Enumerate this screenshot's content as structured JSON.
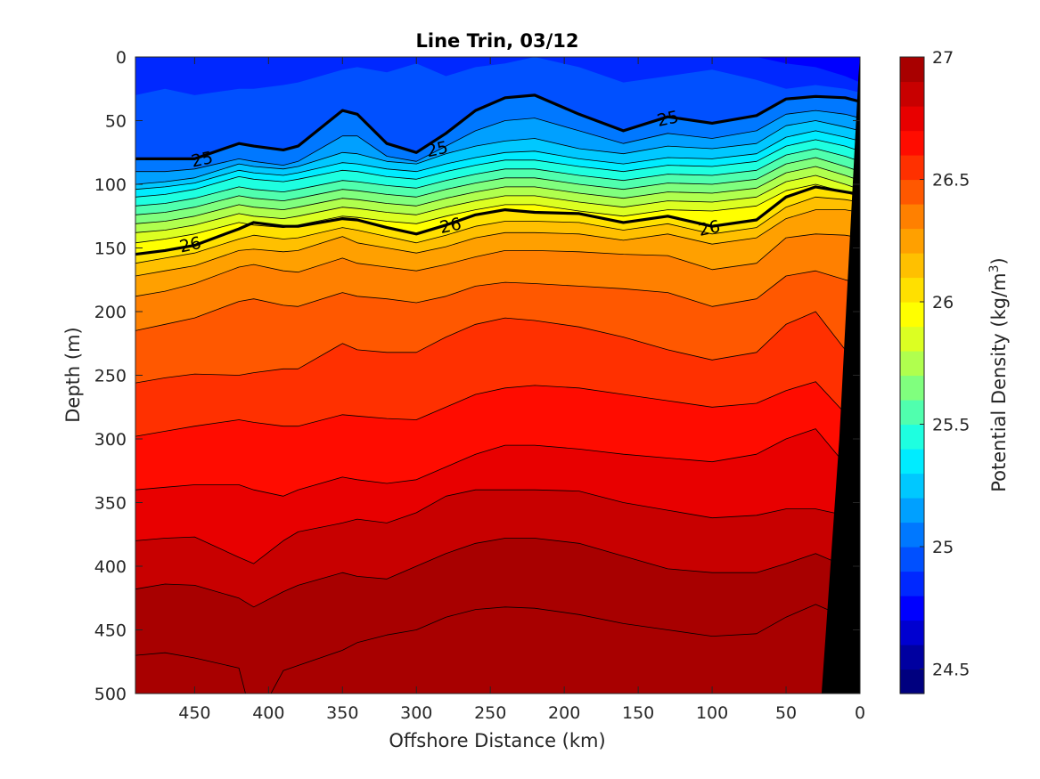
{
  "chart_data": {
    "type": "heatmap",
    "subtype": "filled-contour",
    "title": "Line Trin, 03/12",
    "xlabel": "Offshore Distance (km)",
    "ylabel": "Depth (m)",
    "colorbar_label": "Potential Density (kg/m",
    "colorbar_label_sup": "3",
    "colorbar_label_end": ")",
    "x_reversed": true,
    "y_reversed": true,
    "xlim": [
      490,
      0
    ],
    "ylim": [
      0,
      500
    ],
    "clim": [
      24.4,
      27.0
    ],
    "contour_step": 0.1,
    "labeled_levels": [
      25,
      26
    ],
    "x_ticks": [
      450,
      400,
      350,
      300,
      250,
      200,
      150,
      100,
      50,
      0
    ],
    "x_tick_labels": [
      "450",
      "400",
      "350",
      "300",
      "250",
      "200",
      "150",
      "100",
      "50",
      "0"
    ],
    "y_ticks": [
      0,
      50,
      100,
      150,
      200,
      250,
      300,
      350,
      400,
      450,
      500
    ],
    "y_tick_labels": [
      "0",
      "50",
      "100",
      "150",
      "200",
      "250",
      "300",
      "350",
      "400",
      "450",
      "500"
    ],
    "colorbar_ticks": [
      24.5,
      25,
      25.5,
      26,
      26.5,
      27
    ],
    "colorbar_tick_labels": [
      "24.5",
      "25",
      "25.5",
      "26",
      "26.5",
      "27"
    ],
    "contour_labels": [
      {
        "text": "25",
        "x": 445,
        "y": 80
      },
      {
        "text": "25",
        "x": 286,
        "y": 72
      },
      {
        "text": "25",
        "x": 130,
        "y": 48
      },
      {
        "text": "26",
        "x": 453,
        "y": 147
      },
      {
        "text": "26",
        "x": 277,
        "y": 132
      },
      {
        "text": "26",
        "x": 102,
        "y": 134
      }
    ],
    "isopycnal_depths": {
      "x": [
        490,
        470,
        450,
        420,
        410,
        390,
        380,
        350,
        340,
        320,
        300,
        280,
        260,
        240,
        220,
        190,
        160,
        130,
        100,
        70,
        50,
        30,
        10,
        0
      ],
      "levels": [
        {
          "sigma": 24.7,
          "depth": [
            -28,
            -32,
            -25,
            -30,
            -30,
            -28,
            -30,
            -40,
            -35,
            -30,
            -45,
            -22,
            -38,
            -40,
            -48,
            -40,
            -28,
            -30,
            -32,
            -20,
            -5,
            0,
            0,
            0
          ]
        },
        {
          "sigma": 24.8,
          "depth": [
            -8,
            -10,
            -5,
            -10,
            -10,
            -8,
            -8,
            -20,
            -15,
            -10,
            -25,
            -5,
            -18,
            -20,
            -28,
            -20,
            -5,
            -8,
            -8,
            0,
            5,
            8,
            15,
            20
          ]
        },
        {
          "sigma": 24.9,
          "depth": [
            30,
            25,
            30,
            25,
            25,
            22,
            20,
            10,
            8,
            12,
            5,
            15,
            8,
            5,
            0,
            8,
            20,
            15,
            10,
            18,
            25,
            22,
            25,
            28
          ]
        },
        {
          "sigma": 25.0,
          "depth": [
            80,
            80,
            80,
            68,
            70,
            73,
            70,
            42,
            45,
            68,
            75,
            60,
            42,
            32,
            30,
            45,
            58,
            47,
            52,
            46,
            33,
            31,
            32,
            35
          ]
        },
        {
          "sigma": 25.1,
          "depth": [
            90,
            90,
            88,
            80,
            82,
            85,
            82,
            62,
            62,
            78,
            82,
            70,
            58,
            50,
            48,
            58,
            68,
            60,
            64,
            58,
            45,
            42,
            45,
            48
          ]
        },
        {
          "sigma": 25.2,
          "depth": [
            100,
            98,
            95,
            84,
            86,
            88,
            86,
            75,
            76,
            82,
            84,
            76,
            70,
            66,
            64,
            72,
            76,
            70,
            72,
            68,
            54,
            50,
            55,
            58
          ]
        },
        {
          "sigma": 25.3,
          "depth": [
            104,
            102,
            99,
            89,
            91,
            93,
            91,
            83,
            84,
            88,
            90,
            84,
            79,
            75,
            74,
            80,
            84,
            79,
            80,
            76,
            63,
            58,
            63,
            66
          ]
        },
        {
          "sigma": 25.4,
          "depth": [
            110,
            108,
            104,
            94,
            96,
            98,
            96,
            89,
            90,
            94,
            96,
            90,
            85,
            81,
            81,
            86,
            90,
            85,
            86,
            82,
            70,
            65,
            70,
            74
          ]
        },
        {
          "sigma": 25.5,
          "depth": [
            117,
            115,
            111,
            102,
            104,
            106,
            104,
            97,
            98,
            101,
            103,
            97,
            92,
            88,
            88,
            93,
            97,
            92,
            93,
            89,
            77,
            72,
            78,
            82
          ]
        },
        {
          "sigma": 25.6,
          "depth": [
            124,
            122,
            118,
            109,
            111,
            113,
            111,
            104,
            105,
            108,
            110,
            104,
            99,
            95,
            95,
            100,
            104,
            99,
            100,
            96,
            84,
            79,
            86,
            90
          ]
        },
        {
          "sigma": 25.7,
          "depth": [
            131,
            129,
            125,
            116,
            118,
            120,
            118,
            111,
            112,
            115,
            117,
            111,
            106,
            102,
            102,
            107,
            111,
            106,
            107,
            103,
            91,
            86,
            93,
            97
          ]
        },
        {
          "sigma": 25.8,
          "depth": [
            138,
            136,
            132,
            123,
            125,
            127,
            125,
            118,
            119,
            122,
            124,
            118,
            113,
            109,
            109,
            114,
            118,
            113,
            114,
            110,
            98,
            93,
            100,
            104
          ]
        },
        {
          "sigma": 25.9,
          "depth": [
            146,
            143,
            139,
            130,
            132,
            134,
            132,
            125,
            126,
            129,
            131,
            125,
            120,
            116,
            116,
            121,
            125,
            120,
            121,
            117,
            105,
            100,
            106,
            110
          ]
        },
        {
          "sigma": 26.0,
          "depth": [
            155,
            152,
            148,
            135,
            130,
            133,
            133,
            127,
            128,
            134,
            139,
            132,
            124,
            120,
            122,
            123,
            130,
            125,
            133,
            128,
            110,
            102,
            106,
            108
          ]
        },
        {
          "sigma": 26.1,
          "depth": [
            162,
            158,
            154,
            143,
            140,
            143,
            142,
            134,
            136,
            141,
            146,
            140,
            133,
            129,
            129,
            130,
            136,
            131,
            139,
            134,
            118,
            110,
            112,
            114
          ]
        },
        {
          "sigma": 26.2,
          "depth": [
            172,
            168,
            164,
            152,
            151,
            153,
            152,
            141,
            146,
            150,
            154,
            149,
            142,
            138,
            138,
            139,
            144,
            139,
            147,
            142,
            127,
            120,
            120,
            122
          ]
        },
        {
          "sigma": 26.3,
          "depth": [
            188,
            184,
            178,
            165,
            163,
            168,
            169,
            158,
            162,
            165,
            168,
            163,
            157,
            152,
            152,
            153,
            155,
            156,
            167,
            162,
            142,
            139,
            140,
            142
          ]
        },
        {
          "sigma": 26.4,
          "depth": [
            215,
            210,
            205,
            192,
            190,
            195,
            196,
            185,
            188,
            190,
            193,
            188,
            180,
            177,
            178,
            180,
            182,
            185,
            196,
            190,
            172,
            168,
            175,
            178
          ]
        },
        {
          "sigma": 26.5,
          "depth": [
            256,
            252,
            249,
            250,
            248,
            245,
            245,
            225,
            230,
            232,
            232,
            220,
            210,
            205,
            207,
            212,
            220,
            230,
            238,
            232,
            210,
            200,
            230,
            240
          ]
        },
        {
          "sigma": 26.6,
          "depth": [
            298,
            294,
            290,
            285,
            287,
            290,
            290,
            281,
            282,
            284,
            285,
            275,
            265,
            260,
            258,
            260,
            265,
            270,
            275,
            272,
            262,
            255,
            280,
            290
          ]
        },
        {
          "sigma": 26.7,
          "depth": [
            340,
            338,
            336,
            336,
            340,
            345,
            340,
            330,
            332,
            335,
            332,
            322,
            312,
            305,
            305,
            308,
            312,
            315,
            318,
            312,
            300,
            292,
            320,
            330
          ]
        },
        {
          "sigma": 26.8,
          "depth": [
            380,
            378,
            377,
            393,
            398,
            380,
            373,
            366,
            363,
            366,
            358,
            345,
            340,
            340,
            340,
            341,
            350,
            356,
            362,
            360,
            355,
            355,
            360,
            365
          ]
        },
        {
          "sigma": 26.9,
          "depth": [
            418,
            414,
            415,
            425,
            432,
            420,
            415,
            405,
            408,
            410,
            400,
            390,
            382,
            378,
            378,
            382,
            392,
            402,
            405,
            405,
            398,
            390,
            400,
            405
          ]
        },
        {
          "sigma": 27.0,
          "depth": [
            470,
            468,
            472,
            480,
            525,
            482,
            478,
            466,
            460,
            454,
            450,
            440,
            434,
            432,
            433,
            438,
            445,
            450,
            455,
            453,
            440,
            430,
            440,
            445
          ]
        }
      ]
    },
    "bathymetry": {
      "x": [
        26,
        14,
        1,
        0
      ],
      "depth": [
        500,
        300,
        15,
        0
      ]
    },
    "colormap": [
      "#00007f",
      "#0000a0",
      "#0000d0",
      "#0000ff",
      "#0028ff",
      "#0050ff",
      "#0078ff",
      "#00a0ff",
      "#00c8ff",
      "#00ecff",
      "#1effe0",
      "#50ffae",
      "#80ff7e",
      "#b0ff4e",
      "#dcff22",
      "#ffff00",
      "#ffe000",
      "#ffc000",
      "#ffa000",
      "#ff8000",
      "#ff5800",
      "#ff3000",
      "#ff0c00",
      "#e80000",
      "#c80000",
      "#a80000"
    ]
  }
}
